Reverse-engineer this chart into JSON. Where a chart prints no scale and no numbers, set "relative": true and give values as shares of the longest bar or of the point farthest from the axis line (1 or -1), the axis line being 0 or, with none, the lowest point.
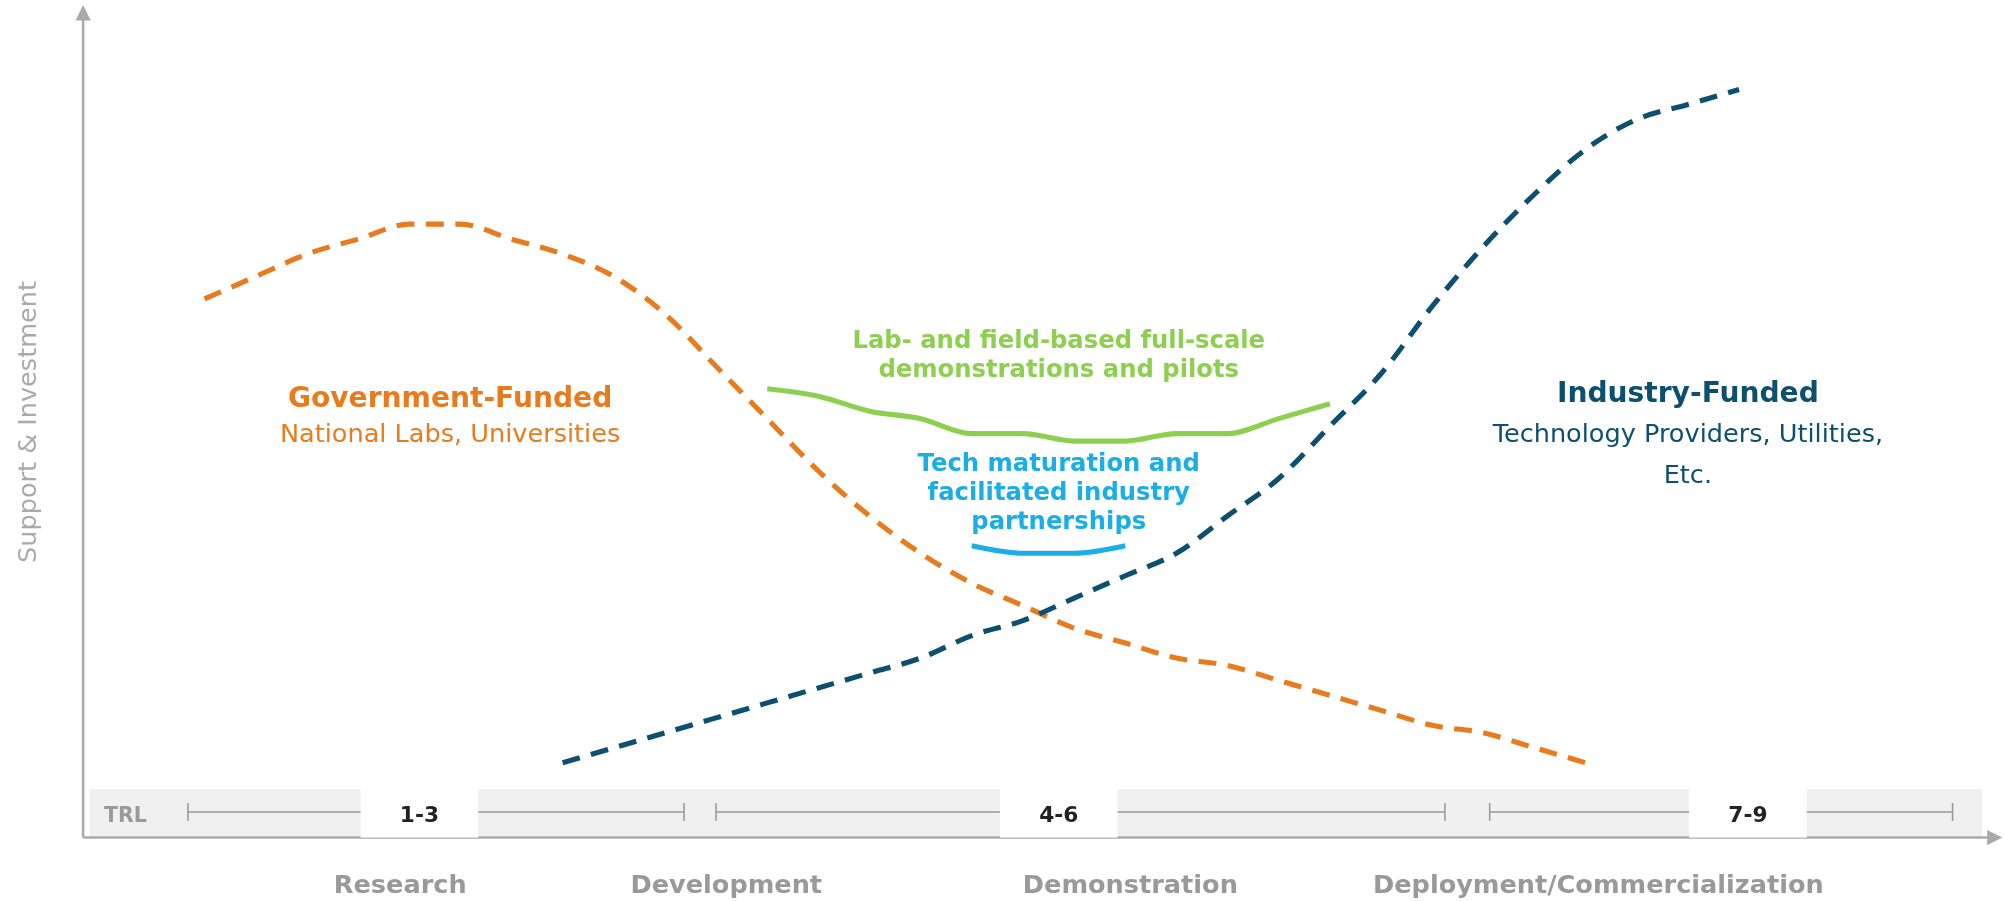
{
  "chart_data": {
    "type": "line",
    "relative": true,
    "ylabel": "Support & Investment",
    "categories": [
      null,
      null,
      null,
      null,
      null,
      null,
      null,
      null,
      null,
      null,
      null,
      null,
      null,
      null,
      null,
      null,
      null,
      null,
      null,
      null,
      null,
      null,
      null,
      null,
      null,
      null,
      null,
      null,
      null,
      null,
      null,
      null,
      null,
      null,
      null,
      null,
      null,
      null
    ],
    "series": [
      {
        "name": "Government-Funded",
        "color": "#e87b1e",
        "line_style": "dashed",
        "values": [
          null,
          null,
          0.72,
          0.75,
          0.78,
          0.8,
          0.82,
          0.82,
          0.8,
          0.78,
          0.75,
          0.7,
          0.63,
          0.56,
          0.49,
          0.43,
          0.38,
          0.34,
          0.31,
          0.28,
          0.26,
          0.24,
          0.23,
          0.21,
          0.19,
          0.17,
          0.15,
          0.14,
          0.12,
          0.1,
          null,
          null,
          null,
          null,
          null,
          null,
          null,
          null
        ]
      },
      {
        "name": "Industry-Funded",
        "color": "#0d4f6e",
        "line_style": "dashed",
        "values": [
          null,
          null,
          null,
          null,
          null,
          null,
          null,
          null,
          null,
          0.1,
          0.12,
          0.14,
          0.16,
          0.18,
          0.2,
          0.22,
          0.24,
          0.27,
          0.29,
          0.32,
          0.35,
          0.38,
          0.43,
          0.48,
          0.55,
          0.62,
          0.71,
          0.79,
          0.86,
          0.92,
          0.96,
          0.98,
          1,
          null,
          null,
          null,
          null,
          null
        ]
      },
      {
        "name": "Lab- and field-based full-scale demonstrations and pilots",
        "color": "#8dcf4f",
        "line_style": "solid",
        "values": [
          null,
          null,
          null,
          null,
          null,
          null,
          null,
          null,
          null,
          null,
          null,
          null,
          null,
          0.6,
          0.59,
          0.57,
          0.56,
          0.54,
          0.54,
          0.53,
          0.53,
          0.54,
          0.54,
          0.56,
          0.58,
          null,
          null,
          null,
          null,
          null,
          null,
          null,
          null,
          null,
          null,
          null,
          null,
          null
        ]
      },
      {
        "name": "Tech maturation and facilitated industry partnerships",
        "color": "#1aaee5",
        "line_style": "solid",
        "values": [
          null,
          null,
          null,
          null,
          null,
          null,
          null,
          null,
          null,
          null,
          null,
          null,
          null,
          null,
          null,
          null,
          null,
          0.39,
          0.38,
          0.38,
          0.39,
          null,
          null,
          null,
          null,
          null,
          null,
          null,
          null,
          null,
          null,
          null,
          null,
          null,
          null,
          null,
          null,
          null
        ]
      }
    ],
    "annotations": [
      "National Labs, Universities",
      "Technology Providers, Utilities, Etc.",
      "TRL",
      "1-3",
      "4-6",
      "7-9",
      "Research",
      "Development",
      "Demonstration",
      "Deployment/Commercialization"
    ]
  }
}
